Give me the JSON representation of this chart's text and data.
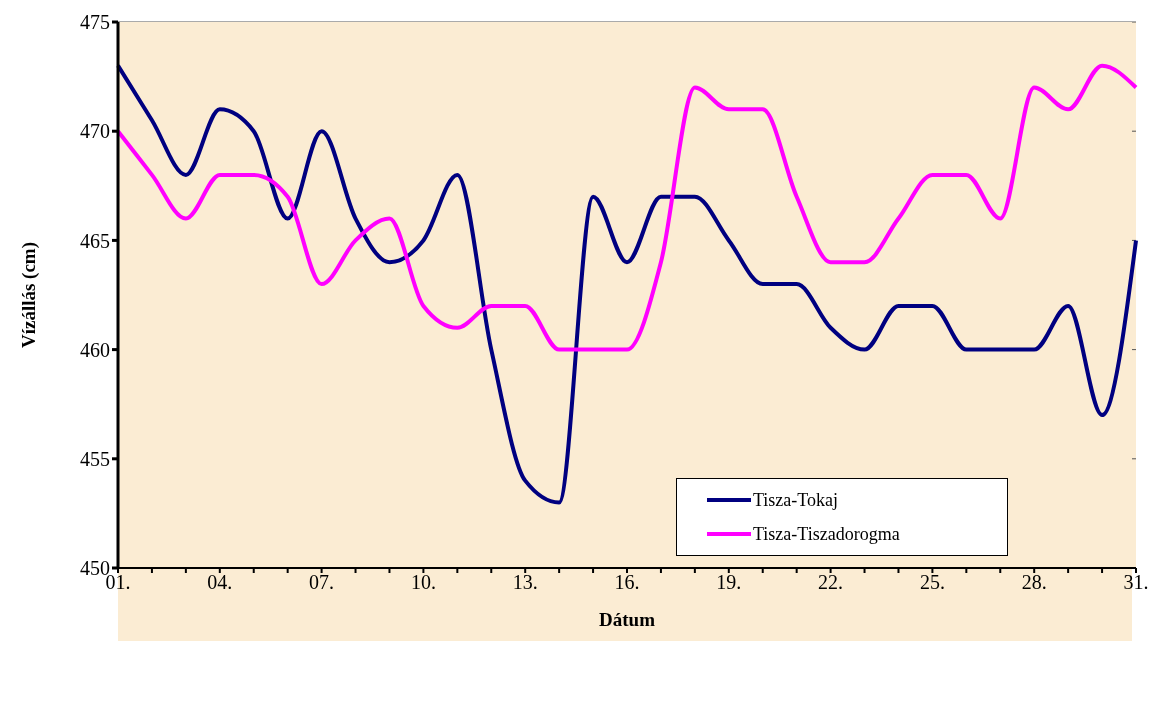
{
  "chart_data": {
    "type": "line",
    "xlabel": "Dátum",
    "ylabel": "Vízállás (cm)",
    "categories": [
      "01.",
      null,
      null,
      "04.",
      null,
      null,
      "07.",
      null,
      null,
      "10.",
      null,
      null,
      "13.",
      null,
      null,
      "16.",
      null,
      null,
      "19.",
      null,
      null,
      "22.",
      null,
      null,
      "25.",
      null,
      null,
      "28.",
      null,
      null,
      "31."
    ],
    "series": [
      {
        "name": "Tisza-Tokaj",
        "color": "#000080",
        "values": [
          473,
          470.5,
          468,
          471,
          470,
          466,
          470,
          466,
          464,
          465,
          468,
          460,
          454,
          453,
          467,
          464,
          467,
          467,
          465,
          463,
          463,
          461,
          460,
          462,
          462,
          460,
          460,
          460,
          462,
          457,
          465
        ]
      },
      {
        "name": "Tisza-Tiszadorogma",
        "color": "#ff00ff",
        "values": [
          470,
          468,
          466,
          468,
          468,
          467,
          463,
          465,
          466,
          462,
          461,
          462,
          462,
          460,
          460,
          460,
          464,
          472,
          471,
          471,
          467,
          464,
          464,
          466,
          468,
          468,
          466,
          472,
          471,
          473,
          472
        ]
      }
    ],
    "ylim": [
      450,
      475
    ],
    "yticks": [
      450,
      455,
      460,
      465,
      470,
      475
    ],
    "grid": "y",
    "legend": "bottom right",
    "marker": "none",
    "line_style": "solid"
  }
}
